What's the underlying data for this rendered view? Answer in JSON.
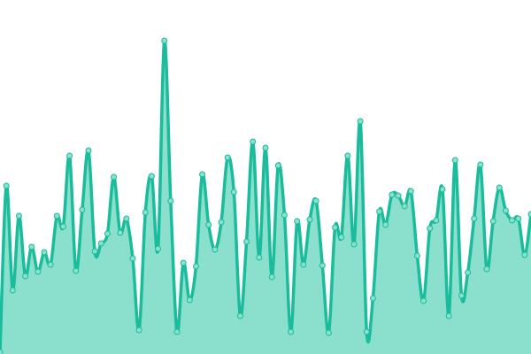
{
  "chart_data": {
    "type": "area",
    "title": "",
    "xlabel": "",
    "ylabel": "",
    "ylim": [
      0,
      400
    ],
    "grid": false,
    "axes_visible": false,
    "curve": "smooth",
    "colors": {
      "line": "#1abc9c",
      "fill": "#8ae0cd",
      "point_fill": "#8ae0cd",
      "point_stroke": "#1abc9c"
    },
    "values": [
      2,
      190,
      72,
      156,
      88,
      121,
      93,
      115,
      101,
      156,
      144,
      224,
      94,
      163,
      230,
      116,
      125,
      136,
      200,
      137,
      153,
      108,
      27,
      160,
      201,
      119,
      354,
      173,
      25,
      103,
      61,
      99,
      203,
      146,
      118,
      149,
      222,
      183,
      43,
      127,
      240,
      109,
      233,
      87,
      213,
      157,
      25,
      150,
      101,
      152,
      173,
      100,
      24,
      143,
      132,
      224,
      124,
      263,
      25,
      63,
      161,
      146,
      180,
      179,
      167,
      184,
      111,
      60,
      142,
      151,
      186,
      43,
      219,
      66,
      92,
      153,
      214,
      96,
      150,
      188,
      162,
      151,
      153,
      112,
      158
    ]
  }
}
